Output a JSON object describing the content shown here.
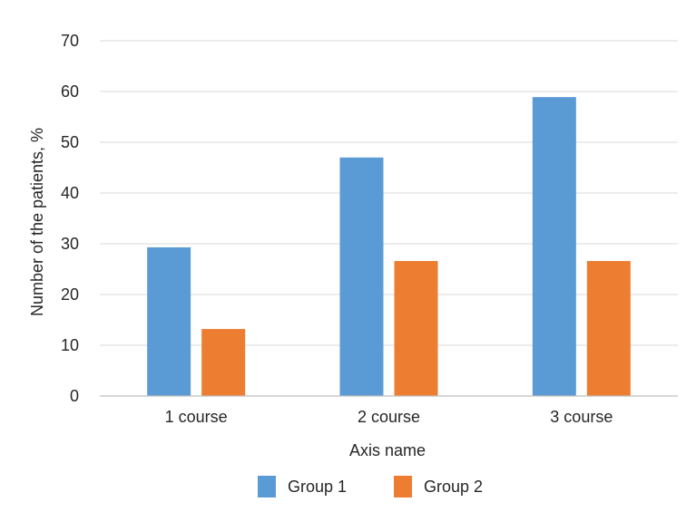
{
  "chart_data": {
    "type": "bar",
    "title": "",
    "xlabel": "Axis name",
    "ylabel": "Number of the patients, %",
    "ylim": [
      0,
      70
    ],
    "yticks": [
      0,
      10,
      20,
      30,
      40,
      50,
      60,
      70
    ],
    "grid": true,
    "legend_position": "bottom",
    "categories": [
      "1 course",
      "2 course",
      "3 course"
    ],
    "series": [
      {
        "name": "Group 1",
        "color": "#5b9bd5",
        "values": [
          29.3,
          47,
          58.9
        ]
      },
      {
        "name": "Group 2",
        "color": "#ed7d31",
        "values": [
          13.2,
          26.6,
          26.6
        ]
      }
    ]
  }
}
